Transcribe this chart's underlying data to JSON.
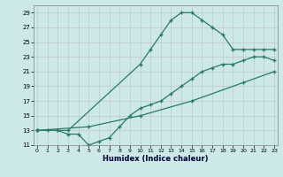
{
  "xlabel": "Humidex (Indice chaleur)",
  "line_color": "#2a7a6a",
  "bg_color": "#cce8e8",
  "grid_color": "#b8d8d8",
  "line1_x": [
    0,
    1,
    2,
    3,
    10,
    11,
    12,
    13,
    14,
    15,
    16,
    17,
    18,
    19,
    20,
    21,
    22,
    23
  ],
  "line1_y": [
    13,
    13,
    13,
    13,
    22,
    24,
    26,
    28,
    29,
    29,
    28,
    27,
    26,
    24,
    24,
    24,
    24,
    24
  ],
  "line2_x": [
    0,
    2,
    3,
    4,
    5,
    6,
    7,
    8,
    9,
    10,
    11,
    12,
    13,
    14,
    15,
    16,
    17,
    18,
    19,
    20,
    21,
    22,
    23
  ],
  "line2_y": [
    13,
    13,
    12.5,
    12.5,
    11,
    11.5,
    12,
    13.5,
    15,
    16,
    16.5,
    17,
    18,
    19,
    20,
    21,
    21.5,
    22,
    22,
    22.5,
    23,
    23,
    22.5
  ],
  "line3_x": [
    0,
    5,
    10,
    15,
    20,
    23
  ],
  "line3_y": [
    13,
    13.5,
    15,
    17,
    19.5,
    21
  ],
  "xlim": [
    0,
    23
  ],
  "ylim": [
    11,
    30
  ],
  "yticks": [
    11,
    13,
    15,
    17,
    19,
    21,
    23,
    25,
    27,
    29
  ],
  "xticks": [
    0,
    1,
    2,
    3,
    4,
    5,
    6,
    7,
    8,
    9,
    10,
    11,
    12,
    13,
    14,
    15,
    16,
    17,
    18,
    19,
    20,
    21,
    22,
    23
  ]
}
